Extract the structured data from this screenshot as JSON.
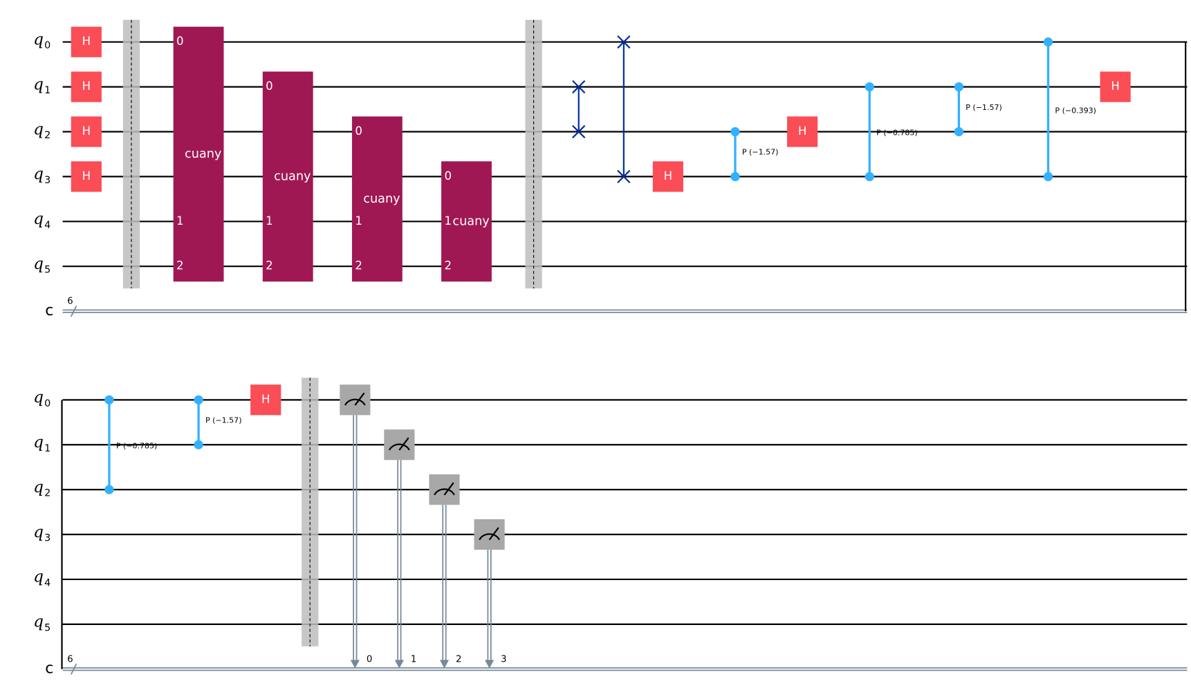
{
  "qubit_symbol": "q",
  "qubit_indices": [
    "0",
    "1",
    "2",
    "3",
    "4",
    "5"
  ],
  "classical_register": "c",
  "classical_size": "6",
  "circuit_rows": [
    {
      "gates": [
        {
          "label": "H"
        },
        {
          "label": "H"
        },
        {
          "label": "H"
        },
        {
          "label": "H"
        },
        {
          "label": "cuany",
          "pins": [
            "0",
            "1",
            "2"
          ]
        },
        {
          "label": "cuany",
          "pins": [
            "0",
            "1",
            "2"
          ]
        },
        {
          "label": "cuany",
          "pins": [
            "0",
            "1",
            "2"
          ]
        },
        {
          "label": "cuany",
          "pins": [
            "0",
            "1",
            "2"
          ]
        },
        {
          "label": "H"
        },
        {
          "label": "P (−1.57)"
        },
        {
          "label": "H"
        },
        {
          "label": "P (−0.785)"
        },
        {
          "label": "P (−1.57)"
        },
        {
          "label": "P (−0.393)"
        },
        {
          "label": "H"
        }
      ]
    },
    {
      "gates": [
        {
          "label": "P (−0.785)"
        },
        {
          "label": "P (−1.57)"
        },
        {
          "label": "H"
        },
        {
          "bit": "0"
        },
        {
          "bit": "1"
        },
        {
          "bit": "2"
        },
        {
          "bit": "3"
        }
      ]
    }
  ]
}
